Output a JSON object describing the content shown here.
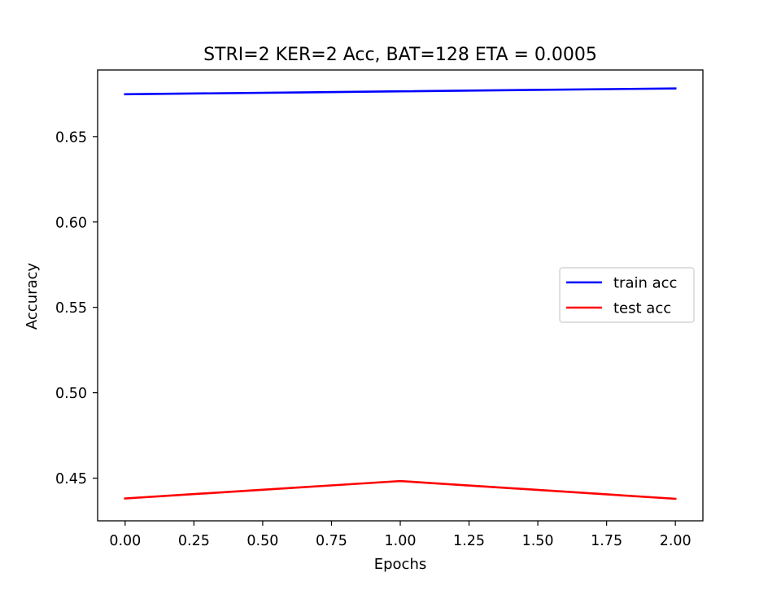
{
  "chart_data": {
    "type": "line",
    "title": "STRI=2 KER=2 Acc, BAT=128 ETA = 0.0005",
    "xlabel": "Epochs",
    "ylabel": "Accuracy",
    "xlim": [
      -0.1,
      2.1
    ],
    "ylim": [
      0.425,
      0.689
    ],
    "xticks": [
      0.0,
      0.25,
      0.5,
      0.75,
      1.0,
      1.25,
      1.5,
      1.75,
      2.0
    ],
    "xtick_labels": [
      "0.00",
      "0.25",
      "0.50",
      "0.75",
      "1.00",
      "1.25",
      "1.50",
      "1.75",
      "2.00"
    ],
    "yticks": [
      0.45,
      0.5,
      0.55,
      0.6,
      0.65
    ],
    "ytick_labels": [
      "0.45",
      "0.50",
      "0.55",
      "0.60",
      "0.65"
    ],
    "grid": false,
    "legend_position": "center-right",
    "x": [
      0,
      1,
      2
    ],
    "series": [
      {
        "name": "train acc",
        "color": "#0000ff",
        "values": [
          0.6748,
          0.6765,
          0.6782
        ]
      },
      {
        "name": "test acc",
        "color": "#ff0000",
        "values": [
          0.4381,
          0.4483,
          0.4379
        ]
      }
    ]
  }
}
